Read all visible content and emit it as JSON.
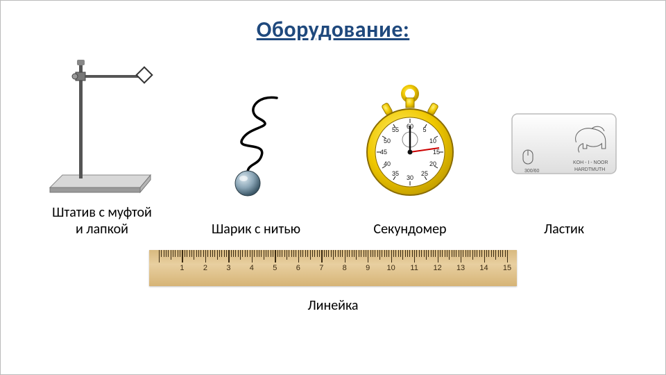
{
  "title": "Оборудование:",
  "title_color": "#1f497d",
  "title_fontsize": 32,
  "items": [
    {
      "key": "stand",
      "label": "Штатив с муфтой\nи лапкой"
    },
    {
      "key": "ball",
      "label": "Шарик с нитью"
    },
    {
      "key": "stopwatch",
      "label": "Секундомер"
    },
    {
      "key": "eraser",
      "label": "Ластик"
    }
  ],
  "ruler": {
    "label": "Линейка",
    "length_cm": 15,
    "labels": [
      1,
      2,
      3,
      4,
      5,
      6,
      7,
      8,
      9,
      10,
      11,
      12,
      13,
      14,
      15
    ],
    "wood_light": "#e8cfa0",
    "wood_dark": "#d6b476",
    "tick_color": "#3a2a12"
  },
  "stopwatch": {
    "body_color": "#f0c800",
    "body_dark": "#b89400",
    "face_color": "#ffffff",
    "second_hand": "#cc0000",
    "text_color": "#111",
    "numbers": [
      "60",
      "5",
      "10",
      "15",
      "20",
      "25",
      "30",
      "35",
      "40",
      "45",
      "50",
      "55"
    ]
  },
  "stand": {
    "base_light": "#d8d8d8",
    "base_dark": "#9a9a9a",
    "rod_color": "#555555"
  },
  "ball": {
    "ball_color": "#8aa5b6",
    "ball_dark": "#3b5666",
    "thread": "#000000"
  },
  "eraser": {
    "body_top": "#ffffff",
    "body_bot": "#dedede",
    "edge": "#bbbbbb",
    "text1": "300/60",
    "text2": "KOH - I - NOOR",
    "text3": "HARDTMUTH"
  }
}
